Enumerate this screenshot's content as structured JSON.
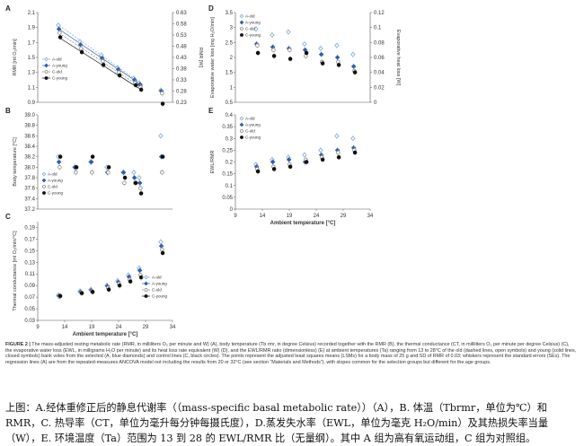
{
  "chart_data": [
    {
      "panel": "A",
      "type": "scatter",
      "xlabel": "",
      "ylabel": "RMR [ml O₂/min]",
      "y2label": "RMR [W]",
      "xlim": [
        9,
        34
      ],
      "ylim": [
        0.9,
        2.1
      ],
      "y2lim": [
        0.23,
        0.63
      ],
      "xticks": [],
      "yticks": [
        0.9,
        1.1,
        1.3,
        1.5,
        1.7,
        1.9,
        2.1
      ],
      "yticklabels": [
        "0.9",
        "1.1",
        "1.3",
        "1.5",
        "1.7",
        "1.9",
        "2.1"
      ],
      "y2ticks": [
        0.23,
        0.28,
        0.33,
        0.38,
        0.43,
        0.48,
        0.53,
        0.58,
        0.63
      ],
      "y2ticklabels": [
        "0.23",
        "0.28",
        "0.33",
        "0.38",
        "0.43",
        "0.48",
        "0.53",
        "0.58",
        "0.63"
      ],
      "legend": [
        "A-old",
        "A-young",
        "C-old",
        "C-young"
      ],
      "legend_position": "bottom-left",
      "x": [
        13,
        17,
        21,
        24,
        27,
        28,
        32
      ],
      "series": [
        {
          "name": "A-old",
          "values": [
            1.93,
            1.71,
            1.53,
            1.36,
            1.22,
            1.16,
            1.06
          ]
        },
        {
          "name": "A-young",
          "values": [
            1.88,
            1.67,
            1.49,
            1.34,
            1.2,
            1.14,
            1.05
          ]
        },
        {
          "name": "C-old",
          "values": [
            1.83,
            1.62,
            1.45,
            1.3,
            1.16,
            1.1,
            1.02
          ]
        },
        {
          "name": "C-young",
          "values": [
            1.77,
            1.57,
            1.4,
            1.26,
            1.13,
            1.07,
            0.88
          ]
        }
      ]
    },
    {
      "panel": "B",
      "type": "scatter",
      "xlabel": "",
      "ylabel": "Body temperature [°C]",
      "xlim": [
        9,
        34
      ],
      "ylim": [
        37.2,
        39.0
      ],
      "xticks": [],
      "yticks": [
        37.2,
        37.4,
        37.6,
        37.8,
        38.0,
        38.2,
        38.4,
        38.6,
        38.8,
        39.0
      ],
      "yticklabels": [
        "37.2",
        "37.4",
        "37.6",
        "37.8",
        "38.0",
        "38.2",
        "38.4",
        "38.6",
        "38.8",
        "39.0"
      ],
      "legend": [
        "A-old",
        "A-young",
        "C-old",
        "C-young"
      ],
      "legend_position": "bottom-left",
      "x": [
        13,
        16,
        19,
        22,
        25,
        27,
        28,
        32
      ],
      "series": [
        {
          "name": "A-old",
          "values": [
            38.2,
            38.0,
            38.1,
            38.0,
            37.9,
            37.9,
            37.8,
            38.6
          ]
        },
        {
          "name": "A-young",
          "values": [
            38.1,
            38.0,
            38.1,
            37.9,
            37.9,
            37.8,
            37.7,
            38.2
          ]
        },
        {
          "name": "C-old",
          "values": [
            38.0,
            37.9,
            37.9,
            37.9,
            37.7,
            37.7,
            37.6,
            37.9
          ]
        },
        {
          "name": "C-young",
          "values": [
            38.2,
            38.0,
            38.2,
            38.0,
            37.8,
            37.7,
            37.5,
            38.2
          ]
        }
      ]
    },
    {
      "panel": "C",
      "type": "scatter",
      "xlabel": "Ambient temperature [°C]",
      "ylabel": "Thermal conductance [ml O₂/min/°C]",
      "xlim": [
        9,
        34
      ],
      "ylim": [
        0.03,
        0.2
      ],
      "xticks": [
        9,
        14,
        19,
        24,
        29,
        34
      ],
      "xticklabels": [
        "9",
        "14",
        "19",
        "24",
        "29",
        "34"
      ],
      "yticks": [
        0.03,
        0.05,
        0.07,
        0.09,
        0.11,
        0.13,
        0.15,
        0.17,
        0.19
      ],
      "yticklabels": [
        "0.03",
        "0.05",
        "0.07",
        "0.09",
        "0.11",
        "0.13",
        "0.15",
        "0.17",
        "0.19"
      ],
      "legend": [
        "A-old",
        "A-young",
        "C-old",
        "C-young"
      ],
      "legend_position": "bottom-right",
      "x": [
        13,
        17,
        19,
        22,
        24,
        26,
        28,
        32
      ],
      "series": [
        {
          "name": "A-old",
          "values": [
            0.073,
            0.08,
            0.083,
            0.09,
            0.098,
            0.108,
            0.12,
            0.165
          ]
        },
        {
          "name": "A-young",
          "values": [
            0.072,
            0.079,
            0.082,
            0.089,
            0.096,
            0.105,
            0.116,
            0.158
          ]
        },
        {
          "name": "C-old",
          "values": [
            0.071,
            0.078,
            0.08,
            0.086,
            0.093,
            0.1,
            0.108,
            0.152
          ]
        },
        {
          "name": "C-young",
          "values": [
            0.072,
            0.077,
            0.079,
            0.083,
            0.09,
            0.097,
            0.104,
            0.146
          ]
        }
      ]
    },
    {
      "panel": "D",
      "type": "scatter",
      "xlabel": "",
      "ylabel": "Evaporative water loss [mg H₂O/min]",
      "y2label": "Evaporative heat loss [W]",
      "xlim": [
        9,
        34
      ],
      "ylim": [
        0.5,
        3.5
      ],
      "y2lim": [
        0.0,
        0.12
      ],
      "xticks": [],
      "yticks": [
        0.5,
        1.0,
        1.5,
        2.0,
        2.5,
        3.0,
        3.5
      ],
      "yticklabels": [
        "0.5",
        "1",
        "1.5",
        "2",
        "2.5",
        "3",
        "3.5"
      ],
      "y2ticks": [
        0.0,
        0.02,
        0.04,
        0.06,
        0.08,
        0.1,
        0.12
      ],
      "y2ticklabels": [
        "0",
        "0.02",
        "0.04",
        "0.06",
        "0.08",
        "0.1",
        "0.12"
      ],
      "legend": [
        "A-old",
        "A-young",
        "C-old",
        "C-young"
      ],
      "legend_position": "top-left",
      "x": [
        13,
        16,
        19,
        22,
        25,
        28,
        31
      ],
      "series": [
        {
          "name": "A-old",
          "values": [
            2.95,
            2.75,
            2.85,
            2.45,
            2.3,
            2.4,
            2.1
          ]
        },
        {
          "name": "A-young",
          "values": [
            2.45,
            2.35,
            2.3,
            2.25,
            2.1,
            2.0,
            1.7
          ]
        },
        {
          "name": "C-old",
          "values": [
            2.4,
            2.25,
            2.25,
            2.05,
            1.85,
            1.85,
            1.55
          ]
        },
        {
          "name": "C-young",
          "values": [
            2.15,
            2.05,
            1.95,
            2.15,
            1.8,
            1.75,
            1.5
          ]
        }
      ]
    },
    {
      "panel": "E",
      "type": "scatter",
      "xlabel": "Ambient temperature [°C]",
      "ylabel": "EWL/RMR",
      "xlim": [
        9,
        34
      ],
      "ylim": [
        0.0,
        0.4
      ],
      "xticks": [
        9,
        14,
        19,
        24,
        29,
        34
      ],
      "xticklabels": [
        "9",
        "14",
        "19",
        "24",
        "29",
        "34"
      ],
      "yticks": [
        0.0,
        0.05,
        0.1,
        0.15,
        0.2,
        0.25,
        0.3,
        0.35,
        0.4
      ],
      "yticklabels": [
        "0",
        "0.05",
        "0.1",
        "0.15",
        "0.2",
        "0.25",
        "0.3",
        "0.35",
        "0.4"
      ],
      "legend": [
        "A-old",
        "A-young",
        "C-old",
        "C-young"
      ],
      "legend_position": "top-left",
      "x": [
        13,
        16,
        19,
        22,
        25,
        28,
        31
      ],
      "series": [
        {
          "name": "A-old",
          "values": [
            0.19,
            0.21,
            0.22,
            0.23,
            0.25,
            0.31,
            0.3
          ]
        },
        {
          "name": "A-young",
          "values": [
            0.18,
            0.2,
            0.21,
            0.2,
            0.23,
            0.25,
            0.26
          ]
        },
        {
          "name": "C-old",
          "values": [
            0.17,
            0.18,
            0.19,
            0.21,
            0.22,
            0.24,
            0.25
          ]
        },
        {
          "name": "C-young",
          "values": [
            0.16,
            0.17,
            0.18,
            0.2,
            0.21,
            0.22,
            0.24
          ]
        }
      ]
    }
  ],
  "style": {
    "A_old_color": "#7fa8d6",
    "A_young_color": "#2e5fa8",
    "C_old_color": "#888888",
    "C_young_color": "#111111",
    "errorbar_color": "#b9b9b9"
  },
  "caption_en": {
    "label": "FIGURE 2 |",
    "text": "The mass-adjusted resting metabolic rate (RMR, in milliliters O₂ per minute and W) (A), body temperature (Tb rmr, in degree Celsius) recorded together with the RMR (B), the thermal conductance (CT, in milliliters O₂ per minute per degree Celsius) (C), the evaporative water loss (EWL, in milligrams H₂O per minute) and its heat loss rate equivalent (W) (D), and the EWL/RMR ratio (dimensionless) (E) at ambient temperatures (Ta) ranging from 13 to 28°C of the old (dashed lines, open symbols) and young (solid lines, closed symbols) bank voles from the selected (A, blue diamonds) and control lines (C, black circles). The points represent the adjusted least squares means (LSMs) for a body mass of 25 g and SD of RMR of 0.03; whiskers represent the standard errors (SEs). The regression lines (A) are from the repeated-measures ANCOVA model not including the results from 20 or 32°C (see section “Materials and Methods”), with slopes common for the selection groups but different for the age groups."
  },
  "caption_zh": "上图：A.经体重修正后的静息代谢率（（mass-specific basal metabolic rate））（A），B. 体温（Tbrmr，单位为℃）和 RMR，C. 热导率（CT，单位为毫升每分钟每摄氏度），D.蒸发失水率（EWL，单位为毫克 H₂O/min）及其热损失率当量（W），E. 环境温度（Ta）范围为 13 到 28 的 EWL/RMR 比（无量纲）。其中 A 组为高有氧运动组，C 组为对照组。"
}
